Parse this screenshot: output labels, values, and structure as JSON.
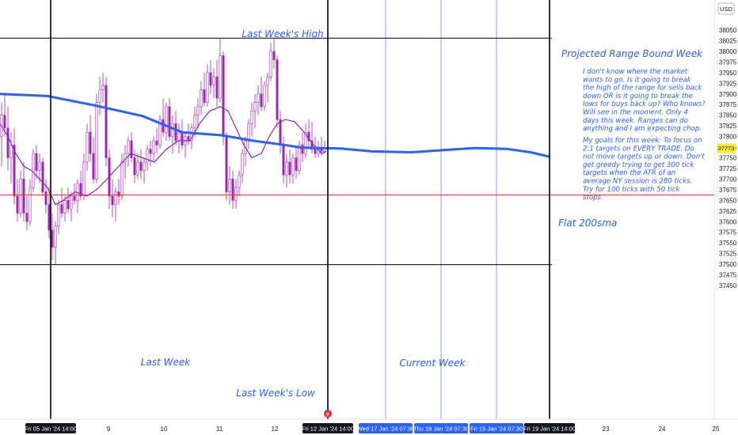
{
  "chart_data": {
    "type": "candlestick",
    "currency": "USD",
    "current_price": "37773",
    "ylim": [
      37450,
      38075
    ],
    "y_ticks": [
      38050,
      38025,
      38000,
      37975,
      37950,
      37925,
      37900,
      37875,
      37850,
      37825,
      37800,
      37775,
      37750,
      37725,
      37700,
      37675,
      37650,
      37625,
      37600,
      37575,
      37550,
      37525,
      37500,
      37475,
      37450
    ],
    "x_labels": {
      "plain": [
        "9",
        "10",
        "11",
        "12",
        "23",
        "24",
        "25"
      ],
      "highlighted": [
        "Fri 05 Jan '24  14:00",
        "Fri 12 Jan '24  14:00",
        "Fri 19 Jan '24  14:00"
      ],
      "cursor_badges": [
        "Wed 17 Jan '24  07:30",
        "Thu 18 Jan '24  07:30",
        "Fri 19 Jan '24  07:30"
      ]
    },
    "levels": {
      "last_week_high": 38031,
      "last_week_low": 37499,
      "red_line": 37663
    },
    "sma_series": {
      "name": "Flat 200sma",
      "points": [
        [
          0,
          37900
        ],
        [
          60,
          37895
        ],
        [
          120,
          37873
        ],
        [
          180,
          37848
        ],
        [
          230,
          37810
        ],
        [
          280,
          37803
        ],
        [
          320,
          37790
        ],
        [
          360,
          37780
        ],
        [
          380,
          37774
        ],
        [
          430,
          37772
        ],
        [
          470,
          37765
        ],
        [
          520,
          37763
        ],
        [
          560,
          37768
        ],
        [
          600,
          37773
        ],
        [
          640,
          37771
        ],
        [
          670,
          37763
        ],
        [
          695,
          37752
        ]
      ]
    },
    "candles": [
      {
        "x": 2,
        "o": 37800,
        "h": 37880,
        "l": 37730,
        "c": 37850
      },
      {
        "x": 6,
        "o": 37850,
        "h": 37900,
        "l": 37800,
        "c": 37820
      },
      {
        "x": 10,
        "o": 37820,
        "h": 37870,
        "l": 37720,
        "c": 37750
      },
      {
        "x": 14,
        "o": 37750,
        "h": 37810,
        "l": 37690,
        "c": 37780
      },
      {
        "x": 18,
        "o": 37780,
        "h": 37820,
        "l": 37640,
        "c": 37660
      },
      {
        "x": 22,
        "o": 37660,
        "h": 37700,
        "l": 37600,
        "c": 37620
      },
      {
        "x": 26,
        "o": 37620,
        "h": 37720,
        "l": 37610,
        "c": 37700
      },
      {
        "x": 30,
        "o": 37700,
        "h": 37740,
        "l": 37600,
        "c": 37620
      },
      {
        "x": 34,
        "o": 37620,
        "h": 37660,
        "l": 37580,
        "c": 37600
      },
      {
        "x": 38,
        "o": 37600,
        "h": 37700,
        "l": 37590,
        "c": 37680
      },
      {
        "x": 42,
        "o": 37680,
        "h": 37770,
        "l": 37670,
        "c": 37760
      },
      {
        "x": 46,
        "o": 37760,
        "h": 37780,
        "l": 37700,
        "c": 37720
      },
      {
        "x": 50,
        "o": 37720,
        "h": 37760,
        "l": 37690,
        "c": 37740
      },
      {
        "x": 54,
        "o": 37740,
        "h": 37750,
        "l": 37660,
        "c": 37670
      },
      {
        "x": 58,
        "o": 37670,
        "h": 37700,
        "l": 37620,
        "c": 37640
      },
      {
        "x": 62,
        "o": 37640,
        "h": 37680,
        "l": 37560,
        "c": 37580
      },
      {
        "x": 66,
        "o": 37580,
        "h": 37620,
        "l": 37510,
        "c": 37540
      },
      {
        "x": 70,
        "o": 37540,
        "h": 37600,
        "l": 37500,
        "c": 37590
      },
      {
        "x": 74,
        "o": 37590,
        "h": 37650,
        "l": 37570,
        "c": 37640
      },
      {
        "x": 78,
        "o": 37640,
        "h": 37680,
        "l": 37610,
        "c": 37620
      },
      {
        "x": 82,
        "o": 37620,
        "h": 37660,
        "l": 37600,
        "c": 37650
      },
      {
        "x": 86,
        "o": 37650,
        "h": 37680,
        "l": 37620,
        "c": 37630
      },
      {
        "x": 90,
        "o": 37630,
        "h": 37670,
        "l": 37600,
        "c": 37660
      },
      {
        "x": 94,
        "o": 37660,
        "h": 37690,
        "l": 37640,
        "c": 37650
      },
      {
        "x": 98,
        "o": 37650,
        "h": 37700,
        "l": 37620,
        "c": 37690
      },
      {
        "x": 102,
        "o": 37690,
        "h": 37720,
        "l": 37650,
        "c": 37660
      },
      {
        "x": 106,
        "o": 37660,
        "h": 37760,
        "l": 37650,
        "c": 37740
      },
      {
        "x": 110,
        "o": 37740,
        "h": 37830,
        "l": 37720,
        "c": 37810
      },
      {
        "x": 114,
        "o": 37810,
        "h": 37850,
        "l": 37740,
        "c": 37760
      },
      {
        "x": 118,
        "o": 37760,
        "h": 37800,
        "l": 37690,
        "c": 37700
      },
      {
        "x": 122,
        "o": 37700,
        "h": 37900,
        "l": 37690,
        "c": 37880
      },
      {
        "x": 126,
        "o": 37880,
        "h": 37940,
        "l": 37850,
        "c": 37910
      },
      {
        "x": 130,
        "o": 37910,
        "h": 37950,
        "l": 37880,
        "c": 37920
      },
      {
        "x": 134,
        "o": 37920,
        "h": 37940,
        "l": 37730,
        "c": 37750
      },
      {
        "x": 138,
        "o": 37750,
        "h": 37770,
        "l": 37630,
        "c": 37660
      },
      {
        "x": 142,
        "o": 37660,
        "h": 37700,
        "l": 37610,
        "c": 37640
      },
      {
        "x": 146,
        "o": 37640,
        "h": 37680,
        "l": 37600,
        "c": 37670
      },
      {
        "x": 150,
        "o": 37670,
        "h": 37700,
        "l": 37640,
        "c": 37660
      },
      {
        "x": 154,
        "o": 37660,
        "h": 37760,
        "l": 37650,
        "c": 37740
      },
      {
        "x": 158,
        "o": 37740,
        "h": 37780,
        "l": 37700,
        "c": 37760
      },
      {
        "x": 162,
        "o": 37760,
        "h": 37800,
        "l": 37730,
        "c": 37790
      },
      {
        "x": 166,
        "o": 37790,
        "h": 37810,
        "l": 37740,
        "c": 37750
      },
      {
        "x": 170,
        "o": 37750,
        "h": 37770,
        "l": 37690,
        "c": 37710
      },
      {
        "x": 174,
        "o": 37710,
        "h": 37760,
        "l": 37700,
        "c": 37740
      },
      {
        "x": 178,
        "o": 37740,
        "h": 37770,
        "l": 37700,
        "c": 37720
      },
      {
        "x": 182,
        "o": 37720,
        "h": 37750,
        "l": 37690,
        "c": 37740
      },
      {
        "x": 186,
        "o": 37740,
        "h": 37780,
        "l": 37720,
        "c": 37770
      },
      {
        "x": 190,
        "o": 37770,
        "h": 37790,
        "l": 37730,
        "c": 37760
      },
      {
        "x": 194,
        "o": 37760,
        "h": 37800,
        "l": 37740,
        "c": 37790
      },
      {
        "x": 198,
        "o": 37790,
        "h": 37820,
        "l": 37760,
        "c": 37780
      },
      {
        "x": 202,
        "o": 37780,
        "h": 37850,
        "l": 37770,
        "c": 37840
      },
      {
        "x": 206,
        "o": 37840,
        "h": 37890,
        "l": 37800,
        "c": 37810
      },
      {
        "x": 210,
        "o": 37810,
        "h": 37880,
        "l": 37790,
        "c": 37870
      },
      {
        "x": 214,
        "o": 37870,
        "h": 37890,
        "l": 37790,
        "c": 37800
      },
      {
        "x": 218,
        "o": 37800,
        "h": 37850,
        "l": 37760,
        "c": 37830
      },
      {
        "x": 222,
        "o": 37830,
        "h": 37860,
        "l": 37780,
        "c": 37790
      },
      {
        "x": 226,
        "o": 37790,
        "h": 37830,
        "l": 37760,
        "c": 37810
      },
      {
        "x": 230,
        "o": 37810,
        "h": 37840,
        "l": 37770,
        "c": 37780
      },
      {
        "x": 234,
        "o": 37780,
        "h": 37810,
        "l": 37750,
        "c": 37800
      },
      {
        "x": 238,
        "o": 37800,
        "h": 37830,
        "l": 37780,
        "c": 37790
      },
      {
        "x": 242,
        "o": 37790,
        "h": 37830,
        "l": 37770,
        "c": 37820
      },
      {
        "x": 246,
        "o": 37820,
        "h": 37870,
        "l": 37800,
        "c": 37850
      },
      {
        "x": 250,
        "o": 37850,
        "h": 37890,
        "l": 37820,
        "c": 37870
      },
      {
        "x": 254,
        "o": 37870,
        "h": 37930,
        "l": 37850,
        "c": 37910
      },
      {
        "x": 258,
        "o": 37910,
        "h": 37950,
        "l": 37870,
        "c": 37880
      },
      {
        "x": 262,
        "o": 37880,
        "h": 37970,
        "l": 37870,
        "c": 37950
      },
      {
        "x": 266,
        "o": 37950,
        "h": 37980,
        "l": 37900,
        "c": 37920
      },
      {
        "x": 270,
        "o": 37920,
        "h": 37960,
        "l": 37890,
        "c": 37940
      },
      {
        "x": 274,
        "o": 37940,
        "h": 37980,
        "l": 37870,
        "c": 37890
      },
      {
        "x": 278,
        "o": 37890,
        "h": 38030,
        "l": 37880,
        "c": 37990
      },
      {
        "x": 282,
        "o": 37990,
        "h": 38000,
        "l": 37780,
        "c": 37800
      },
      {
        "x": 286,
        "o": 37800,
        "h": 37810,
        "l": 37650,
        "c": 37670
      },
      {
        "x": 290,
        "o": 37670,
        "h": 37730,
        "l": 37640,
        "c": 37700
      },
      {
        "x": 294,
        "o": 37700,
        "h": 37720,
        "l": 37630,
        "c": 37650
      },
      {
        "x": 298,
        "o": 37650,
        "h": 37700,
        "l": 37630,
        "c": 37680
      },
      {
        "x": 302,
        "o": 37680,
        "h": 37720,
        "l": 37660,
        "c": 37710
      },
      {
        "x": 306,
        "o": 37710,
        "h": 37770,
        "l": 37690,
        "c": 37760
      },
      {
        "x": 310,
        "o": 37760,
        "h": 37800,
        "l": 37730,
        "c": 37790
      },
      {
        "x": 314,
        "o": 37790,
        "h": 37840,
        "l": 37770,
        "c": 37830
      },
      {
        "x": 318,
        "o": 37830,
        "h": 37880,
        "l": 37800,
        "c": 37860
      },
      {
        "x": 322,
        "o": 37860,
        "h": 37900,
        "l": 37820,
        "c": 37880
      },
      {
        "x": 326,
        "o": 37880,
        "h": 37920,
        "l": 37850,
        "c": 37900
      },
      {
        "x": 330,
        "o": 37900,
        "h": 37940,
        "l": 37860,
        "c": 37870
      },
      {
        "x": 334,
        "o": 37870,
        "h": 37930,
        "l": 37860,
        "c": 37920
      },
      {
        "x": 338,
        "o": 37920,
        "h": 37950,
        "l": 37880,
        "c": 37940
      },
      {
        "x": 342,
        "o": 37940,
        "h": 38020,
        "l": 37930,
        "c": 38000
      },
      {
        "x": 346,
        "o": 38000,
        "h": 38030,
        "l": 37960,
        "c": 37980
      },
      {
        "x": 350,
        "o": 37980,
        "h": 37990,
        "l": 37820,
        "c": 37840
      },
      {
        "x": 354,
        "o": 37840,
        "h": 37860,
        "l": 37760,
        "c": 37780
      },
      {
        "x": 358,
        "o": 37780,
        "h": 37800,
        "l": 37690,
        "c": 37710
      },
      {
        "x": 362,
        "o": 37710,
        "h": 37760,
        "l": 37680,
        "c": 37740
      },
      {
        "x": 366,
        "o": 37740,
        "h": 37770,
        "l": 37690,
        "c": 37710
      },
      {
        "x": 370,
        "o": 37710,
        "h": 37760,
        "l": 37690,
        "c": 37750
      },
      {
        "x": 374,
        "o": 37750,
        "h": 37780,
        "l": 37700,
        "c": 37720
      },
      {
        "x": 378,
        "o": 37720,
        "h": 37790,
        "l": 37710,
        "c": 37780
      },
      {
        "x": 382,
        "o": 37780,
        "h": 37810,
        "l": 37740,
        "c": 37760
      },
      {
        "x": 386,
        "o": 37760,
        "h": 37830,
        "l": 37750,
        "c": 37810
      },
      {
        "x": 390,
        "o": 37810,
        "h": 37840,
        "l": 37770,
        "c": 37790
      },
      {
        "x": 394,
        "o": 37790,
        "h": 37835,
        "l": 37760,
        "c": 37770
      },
      {
        "x": 398,
        "o": 37770,
        "h": 37800,
        "l": 37750,
        "c": 37760
      },
      {
        "x": 402,
        "o": 37760,
        "h": 37790,
        "l": 37750,
        "c": 37770
      },
      {
        "x": 406,
        "o": 37770,
        "h": 37800,
        "l": 37755,
        "c": 37765
      },
      {
        "x": 410,
        "o": 37765,
        "h": 37790,
        "l": 37760,
        "c": 37773
      }
    ],
    "ema_points": [
      [
        0,
        37830
      ],
      [
        10,
        37800
      ],
      [
        20,
        37760
      ],
      [
        30,
        37730
      ],
      [
        40,
        37720
      ],
      [
        50,
        37700
      ],
      [
        60,
        37680
      ],
      [
        70,
        37640
      ],
      [
        80,
        37650
      ],
      [
        95,
        37670
      ],
      [
        110,
        37660
      ],
      [
        125,
        37680
      ],
      [
        140,
        37710
      ],
      [
        155,
        37740
      ],
      [
        165,
        37760
      ],
      [
        180,
        37750
      ],
      [
        195,
        37740
      ],
      [
        210,
        37770
      ],
      [
        225,
        37790
      ],
      [
        240,
        37790
      ],
      [
        252,
        37830
      ],
      [
        265,
        37860
      ],
      [
        278,
        37870
      ],
      [
        288,
        37860
      ],
      [
        298,
        37820
      ],
      [
        308,
        37780
      ],
      [
        318,
        37750
      ],
      [
        330,
        37760
      ],
      [
        340,
        37800
      ],
      [
        350,
        37830
      ],
      [
        360,
        37840
      ],
      [
        372,
        37835
      ],
      [
        384,
        37810
      ],
      [
        396,
        37780
      ],
      [
        406,
        37760
      ],
      [
        412,
        37765
      ]
    ],
    "annotations": {
      "last_week_high": "Last Week's High",
      "last_week_low": "Last Week's Low",
      "last_week": "Last Week",
      "current_week": "Current Week",
      "sma_label": "Flat 200sma",
      "note_title": "Projected Range Bound Week",
      "note_paragraph_1": [
        "I don't know where the market",
        "wants to go. Is it going to break",
        "the high of the range for sells back",
        "down OR is it going to break the",
        "lows for buys back up? Who knows?",
        "Will see in the moment. Only 4",
        "days this week. Ranges can do",
        "anything and I am expecting chop."
      ],
      "note_paragraph_2": [
        "My goals for this week: To focus on",
        "2:1 targets on EVERY TRADE. Do",
        "not move targets up or down. Don't",
        "get greedy trying to get 300 tick",
        "targets when the ATR of an",
        "average NY session is 280 ticks.",
        "Try for 100 ticks with 50 tick",
        "stops."
      ]
    },
    "colors": {
      "candle": "#9c27b0",
      "ema": "#8e24aa",
      "sma": "#2962ff",
      "annotation": "#2962ff",
      "red_line": "#e53935",
      "price_badge": "#ffeb3b",
      "axis_badge": "#131722",
      "cursor_badge": "#2962ff"
    }
  }
}
